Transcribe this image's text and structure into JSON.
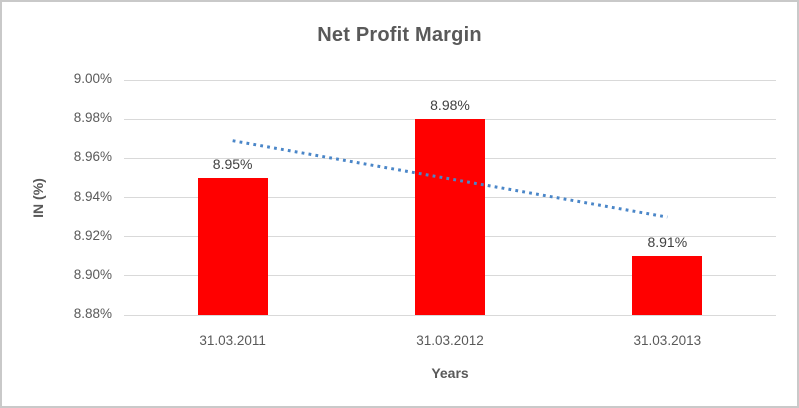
{
  "frame": {
    "background": "#FFFFFF",
    "border_color": "#C9C9C9"
  },
  "colors": {
    "title_text": "#595959",
    "axis_title_text": "#595959",
    "tick_text": "#595959",
    "data_label_text": "#404040",
    "gridline": "#D9D9D9",
    "bar": "#FF0000",
    "trendline": "#4A86C8"
  },
  "chart_data": {
    "type": "bar",
    "title": "Net Profit Margin",
    "categories": [
      "31.03.2011",
      "31.03.2012",
      "31.03.2013"
    ],
    "values": [
      8.95,
      8.98,
      8.91
    ],
    "data_labels": [
      "8.95%",
      "8.98%",
      "8.91%"
    ],
    "xlabel": "Years",
    "ylabel": "IN (%)",
    "ylim": [
      8.88,
      9.0
    ],
    "ytick_step": 0.02,
    "ytick_labels": [
      "8.88%",
      "8.90%",
      "8.92%",
      "8.94%",
      "8.96%",
      "8.98%",
      "9.00%"
    ],
    "grid": true,
    "legend": "none",
    "trendline": {
      "type": "linear",
      "style": "dotted",
      "start_value": 8.969,
      "end_value": 8.93
    }
  }
}
